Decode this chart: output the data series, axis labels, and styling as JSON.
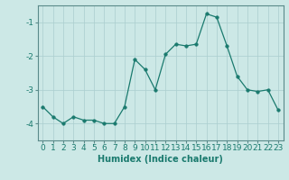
{
  "x": [
    0,
    1,
    2,
    3,
    4,
    5,
    6,
    7,
    8,
    9,
    10,
    11,
    12,
    13,
    14,
    15,
    16,
    17,
    18,
    19,
    20,
    21,
    22,
    23
  ],
  "y": [
    -3.5,
    -3.8,
    -4.0,
    -3.8,
    -3.9,
    -3.9,
    -4.0,
    -4.0,
    -3.5,
    -2.1,
    -2.4,
    -3.0,
    -1.95,
    -1.65,
    -1.7,
    -1.65,
    -0.75,
    -0.85,
    -1.7,
    -2.6,
    -3.0,
    -3.05,
    -3.0,
    -3.6
  ],
  "line_color": "#1a7a6e",
  "marker": "o",
  "marker_size": 2.5,
  "xlabel": "Humidex (Indice chaleur)",
  "xlim": [
    -0.5,
    23.5
  ],
  "ylim": [
    -4.5,
    -0.5
  ],
  "xtick_labels": [
    "0",
    "1",
    "2",
    "3",
    "4",
    "5",
    "6",
    "7",
    "8",
    "9",
    "10",
    "11",
    "12",
    "13",
    "14",
    "15",
    "16",
    "17",
    "18",
    "19",
    "20",
    "21",
    "22",
    "23"
  ],
  "yticks": [
    -4,
    -3,
    -2,
    -1
  ],
  "bg_color": "#cce8e6",
  "grid_color": "#aacece",
  "border_color": "#5a8a8a",
  "tick_color": "#1a7a6e",
  "label_color": "#1a7a6e",
  "xlabel_fontsize": 7,
  "tick_fontsize": 6.5
}
